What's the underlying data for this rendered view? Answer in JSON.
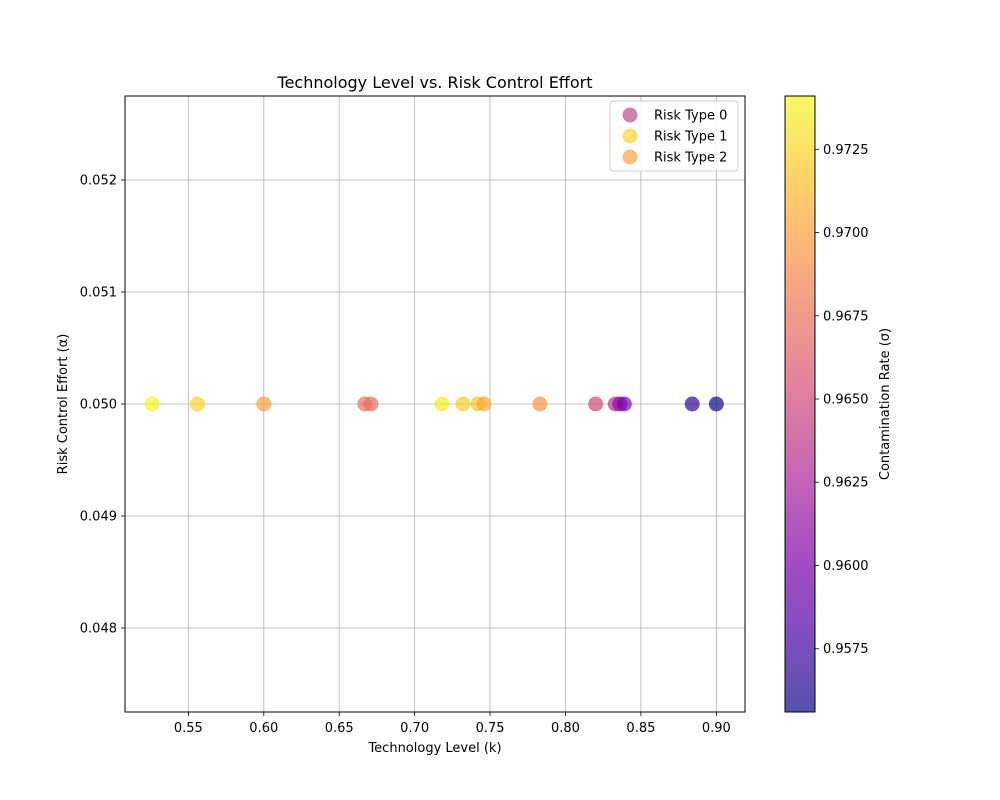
{
  "chart_data": {
    "type": "scatter",
    "title": "Technology Level vs. Risk Control Effort",
    "xlabel": "Technology Level (k)",
    "ylabel": "Risk Control Effort (α)",
    "xlim": [
      0.508,
      0.919
    ],
    "ylim": [
      0.04725,
      0.05275
    ],
    "xticks": [
      "0.55",
      "0.60",
      "0.65",
      "0.70",
      "0.75",
      "0.80",
      "0.85",
      "0.90"
    ],
    "yticks": [
      "0.048",
      "0.049",
      "0.050",
      "0.051",
      "0.052"
    ],
    "grid": true,
    "legend_position": "top-right",
    "colorbar": {
      "label": "Contamination Rate (σ)",
      "colormap": "plasma",
      "range": [
        0.9556,
        0.9741
      ],
      "ticks": [
        "0.9575",
        "0.9600",
        "0.9625",
        "0.9650",
        "0.9675",
        "0.9700",
        "0.9725"
      ]
    },
    "series": [
      {
        "name": "Risk Type 0",
        "legend_color": "#c56096",
        "points": [
          {
            "x": 0.82,
            "y": 0.05,
            "c": 0.9652
          },
          {
            "x": 0.833,
            "y": 0.05,
            "c": 0.9638
          },
          {
            "x": 0.836,
            "y": 0.05,
            "c": 0.961
          },
          {
            "x": 0.839,
            "y": 0.05,
            "c": 0.9602
          },
          {
            "x": 0.884,
            "y": 0.05,
            "c": 0.957
          },
          {
            "x": 0.9,
            "y": 0.05,
            "c": 0.9556
          }
        ]
      },
      {
        "name": "Risk Type 1",
        "legend_color": "#f2df4a",
        "points": [
          {
            "x": 0.526,
            "y": 0.05,
            "c": 0.974
          },
          {
            "x": 0.556,
            "y": 0.05,
            "c": 0.9725
          },
          {
            "x": 0.718,
            "y": 0.05,
            "c": 0.9735
          },
          {
            "x": 0.732,
            "y": 0.05,
            "c": 0.9722
          },
          {
            "x": 0.742,
            "y": 0.05,
            "c": 0.9718
          }
        ]
      },
      {
        "name": "Risk Type 2",
        "legend_color": "#f6b160",
        "points": [
          {
            "x": 0.6,
            "y": 0.05,
            "c": 0.97
          },
          {
            "x": 0.667,
            "y": 0.05,
            "c": 0.9676
          },
          {
            "x": 0.671,
            "y": 0.05,
            "c": 0.9672
          },
          {
            "x": 0.746,
            "y": 0.05,
            "c": 0.9705
          },
          {
            "x": 0.783,
            "y": 0.05,
            "c": 0.9695
          }
        ]
      }
    ]
  }
}
